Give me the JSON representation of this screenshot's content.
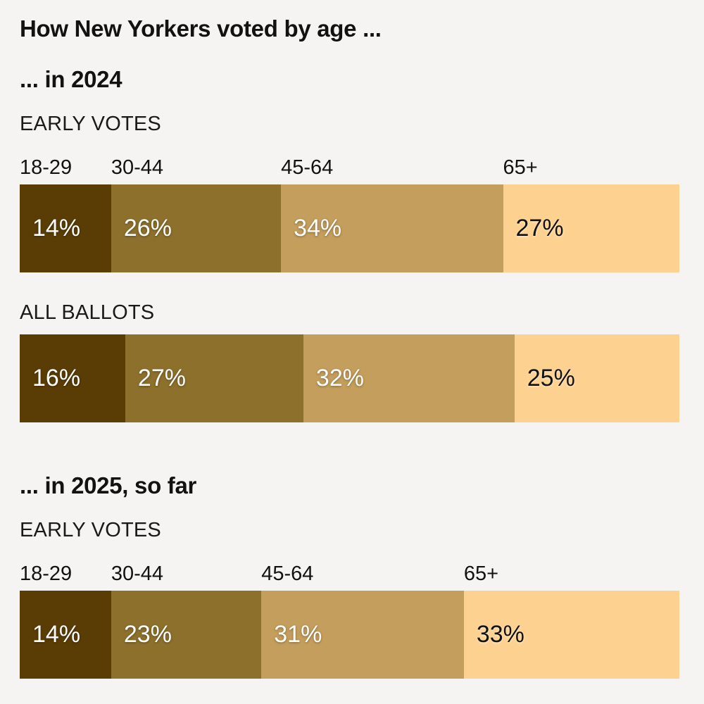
{
  "title": "How New Yorkers voted by age ...",
  "colors": {
    "background": "#f5f4f2",
    "text": "#121212",
    "value_label_light": "#ffffff",
    "value_label_dark": "#121212"
  },
  "age_segments": [
    {
      "label": "18-29",
      "color": "#5a3d05",
      "value_color": "light"
    },
    {
      "label": "30-44",
      "color": "#8d702c",
      "value_color": "light"
    },
    {
      "label": "45-64",
      "color": "#c49e5c",
      "value_color": "light"
    },
    {
      "label": "65+",
      "color": "#fdd290",
      "value_color": "dark"
    }
  ],
  "sections": [
    {
      "heading": "... in 2024",
      "charts": [
        {
          "label": "EARLY VOTES",
          "show_age_labels": true,
          "values": [
            14,
            26,
            34,
            27
          ]
        },
        {
          "label": "ALL BALLOTS",
          "show_age_labels": false,
          "values": [
            16,
            27,
            32,
            25
          ]
        }
      ]
    },
    {
      "heading": "... in 2025, so far",
      "charts": [
        {
          "label": "EARLY VOTES",
          "show_age_labels": true,
          "values": [
            14,
            23,
            31,
            33
          ]
        }
      ]
    }
  ],
  "chart_data": [
    {
      "type": "bar",
      "subtype": "stacked-horizontal",
      "title": "... in 2024 — EARLY VOTES",
      "categories": [
        "18-29",
        "30-44",
        "45-64",
        "65+"
      ],
      "values": [
        14,
        26,
        34,
        27
      ],
      "unit": "%",
      "data_labels": [
        "14%",
        "26%",
        "34%",
        "27%"
      ],
      "category_labels_shown": true,
      "grid": false,
      "legend": "none"
    },
    {
      "type": "bar",
      "subtype": "stacked-horizontal",
      "title": "... in 2024 — ALL BALLOTS",
      "categories": [
        "18-29",
        "30-44",
        "45-64",
        "65+"
      ],
      "values": [
        16,
        27,
        32,
        25
      ],
      "unit": "%",
      "data_labels": [
        "16%",
        "27%",
        "32%",
        "25%"
      ],
      "category_labels_shown": false,
      "grid": false,
      "legend": "none"
    },
    {
      "type": "bar",
      "subtype": "stacked-horizontal",
      "title": "... in 2025, so far — EARLY VOTES",
      "categories": [
        "18-29",
        "30-44",
        "45-64",
        "65+"
      ],
      "values": [
        14,
        23,
        31,
        33
      ],
      "unit": "%",
      "data_labels": [
        "14%",
        "23%",
        "31%",
        "33%"
      ],
      "category_labels_shown": true,
      "grid": false,
      "legend": "none"
    }
  ]
}
